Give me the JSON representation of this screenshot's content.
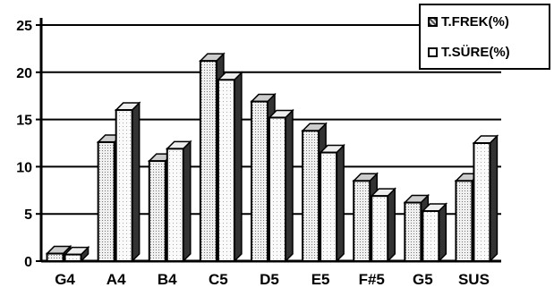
{
  "chart_data": {
    "type": "bar",
    "categories": [
      "G4",
      "A4",
      "B4",
      "C5",
      "D5",
      "E5",
      "F#5",
      "G5",
      "SUS"
    ],
    "series": [
      {
        "name": "T.FREK(%)",
        "values": [
          0.8,
          12.6,
          10.6,
          21.2,
          16.9,
          13.8,
          8.5,
          6.2,
          8.5
        ]
      },
      {
        "name": "T.SÜRE(%)",
        "values": [
          0.7,
          16.0,
          11.9,
          19.2,
          15.2,
          11.5,
          6.9,
          5.3,
          12.5
        ]
      }
    ],
    "ylim": [
      0,
      25
    ],
    "yticks": [
      "0",
      "5",
      "10",
      "15",
      "20",
      "25"
    ],
    "grid": true,
    "legend_position": "top-right",
    "colors": {
      "series1": "#e6e6e6",
      "series2": "#ffffff",
      "edge": "#000000",
      "depth": "#333333"
    }
  }
}
